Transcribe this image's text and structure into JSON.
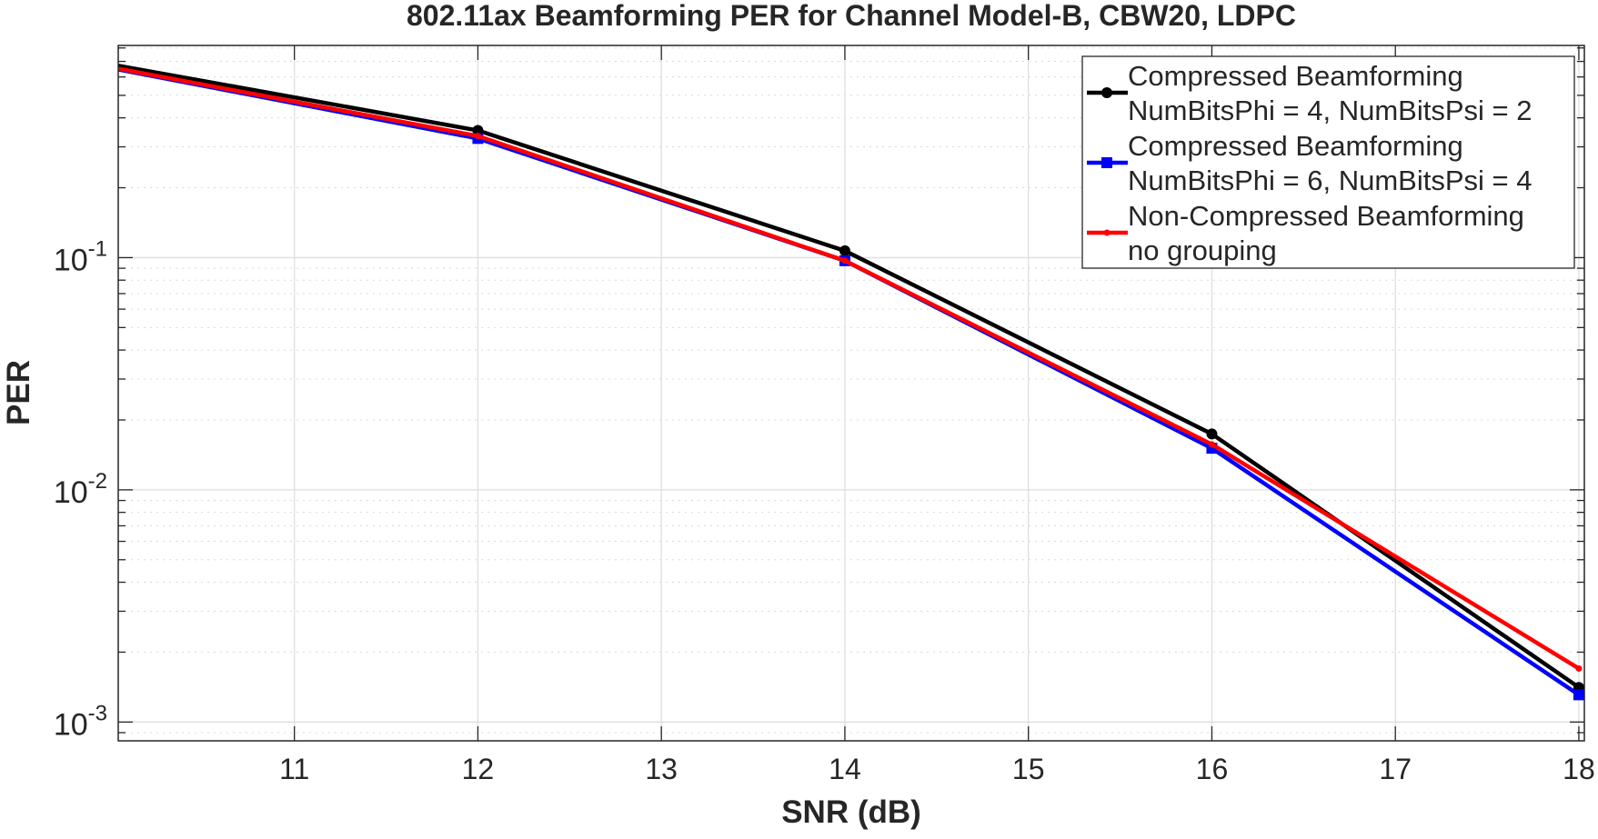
{
  "chart_data": {
    "type": "line",
    "title": "802.11ax Beamforming PER for Channel Model-B, CBW20, LDPC",
    "xlabel": "SNR (dB)",
    "ylabel": "PER",
    "xscale": "linear",
    "yscale": "log",
    "xlim": [
      10.04,
      18.03
    ],
    "ylim": [
      0.00083,
      0.82
    ],
    "xticks": [
      11,
      12,
      13,
      14,
      15,
      16,
      17,
      18
    ],
    "xtick_labels": [
      "11",
      "12",
      "13",
      "14",
      "15",
      "16",
      "17",
      "18"
    ],
    "yticks": [
      0.1,
      0.01,
      0.001
    ],
    "ytick_labels": [
      {
        "base": "10",
        "exp": "-1"
      },
      {
        "base": "10",
        "exp": "-2"
      },
      {
        "base": "10",
        "exp": "-3"
      }
    ],
    "grid": true,
    "minor_grid": true,
    "legend_placement": "top-right",
    "x": [
      10,
      12,
      14,
      16,
      18
    ],
    "series": [
      {
        "name": "Compressed Beamforming\nNumBitsPhi = 4, NumBitsPsi = 2",
        "lines": [
          "Compressed Beamforming",
          "NumBitsPhi = 4, NumBitsPsi = 2"
        ],
        "color": "#000000",
        "marker": "circle",
        "values": [
          0.68,
          0.353,
          0.107,
          0.0174,
          0.00141
        ]
      },
      {
        "name": "Compressed Beamforming\nNumBitsPhi = 6, NumBitsPsi = 4",
        "lines": [
          "Compressed Beamforming",
          "NumBitsPhi = 6, NumBitsPsi = 4"
        ],
        "color": "#0000ff",
        "marker": "square",
        "values": [
          0.655,
          0.326,
          0.097,
          0.0151,
          0.00131
        ]
      },
      {
        "name": "Non-Compressed Beamforming\nno grouping",
        "lines": [
          "Non-Compressed Beamforming",
          "no grouping"
        ],
        "color": "#ff0000",
        "marker": "point",
        "values": [
          0.66,
          0.334,
          0.097,
          0.0157,
          0.0017
        ]
      }
    ]
  }
}
